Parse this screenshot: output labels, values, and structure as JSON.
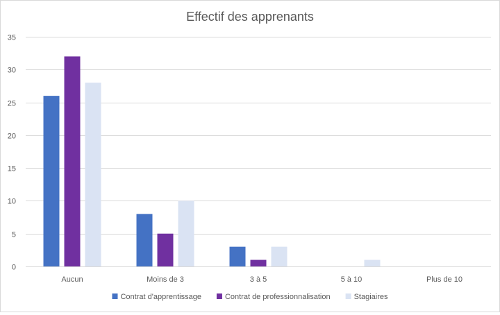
{
  "chart_data": {
    "type": "bar",
    "title": "Effectif des apprenants",
    "xlabel": "",
    "ylabel": "",
    "categories": [
      "Aucun",
      "Moins de 3",
      "3 à 5",
      "5 à 10",
      "Plus de 10"
    ],
    "series": [
      {
        "name": "Contrat d'apprentissage",
        "color": "#4472c4",
        "values": [
          26,
          8,
          3,
          0,
          0
        ]
      },
      {
        "name": "Contrat de professionnalisation",
        "color": "#7030a0",
        "values": [
          32,
          5,
          1,
          0,
          0
        ]
      },
      {
        "name": "Stagiaires",
        "color": "#dae3f3",
        "values": [
          28,
          10,
          3,
          1,
          0
        ]
      }
    ],
    "ylim": [
      0,
      35
    ],
    "yticks": [
      0,
      5,
      10,
      15,
      20,
      25,
      30,
      35
    ],
    "grid": true,
    "legend_position": "bottom"
  }
}
